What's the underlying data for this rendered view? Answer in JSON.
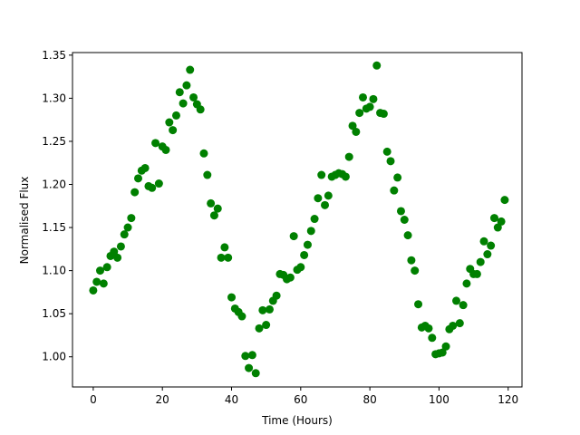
{
  "chart_data": {
    "type": "scatter",
    "title": "",
    "xlabel": "Time (Hours)",
    "ylabel": "Normalised Flux",
    "xlim": [
      -6,
      124
    ],
    "ylim": [
      0.965,
      1.353
    ],
    "xticks": [
      0,
      20,
      40,
      60,
      80,
      100,
      120
    ],
    "yticks": [
      1.0,
      1.05,
      1.1,
      1.15,
      1.2,
      1.25,
      1.3,
      1.35
    ],
    "xtick_labels": [
      "0",
      "20",
      "40",
      "60",
      "80",
      "100",
      "120"
    ],
    "ytick_labels": [
      "1.00",
      "1.05",
      "1.10",
      "1.15",
      "1.20",
      "1.25",
      "1.30",
      "1.35"
    ],
    "grid": false,
    "marker_color": "#008000",
    "series": [
      {
        "x": [
          0,
          1,
          2,
          3,
          4,
          5,
          6,
          7,
          8,
          9,
          10,
          11,
          12,
          13,
          14,
          15,
          16,
          17,
          18,
          19,
          20,
          21,
          22,
          23,
          24,
          25,
          26,
          27,
          28,
          29,
          30,
          31,
          32,
          33,
          34,
          35,
          36,
          37,
          38,
          39,
          40,
          41,
          42,
          43,
          44,
          45,
          46,
          47,
          48,
          49,
          50,
          51,
          52,
          53,
          54,
          55,
          56,
          57,
          58,
          59,
          60,
          61,
          62,
          63,
          64,
          65,
          66,
          67,
          68,
          69,
          70,
          71,
          72,
          73,
          74,
          75,
          76,
          77,
          78,
          79,
          80,
          81,
          82,
          83,
          84,
          85,
          86,
          87,
          88,
          89,
          90,
          91,
          92,
          93,
          94,
          95,
          96,
          97,
          98,
          99,
          100,
          101,
          102,
          103,
          104,
          105,
          106,
          107,
          108,
          109,
          110,
          111,
          112,
          113,
          114,
          115,
          116,
          117,
          118,
          119
        ],
        "y": [
          1.077,
          1.087,
          1.1,
          1.085,
          1.104,
          1.117,
          1.122,
          1.115,
          1.128,
          1.142,
          1.15,
          1.161,
          1.191,
          1.207,
          1.216,
          1.219,
          1.198,
          1.196,
          1.248,
          1.201,
          1.244,
          1.24,
          1.272,
          1.263,
          1.28,
          1.307,
          1.294,
          1.315,
          1.333,
          1.301,
          1.293,
          1.287,
          1.236,
          1.211,
          1.178,
          1.164,
          1.172,
          1.115,
          1.127,
          1.115,
          1.069,
          1.056,
          1.052,
          1.047,
          1.001,
          0.987,
          1.002,
          0.981,
          1.033,
          1.054,
          1.037,
          1.055,
          1.065,
          1.071,
          1.096,
          1.095,
          1.09,
          1.092,
          1.14,
          1.101,
          1.104,
          1.118,
          1.13,
          1.146,
          1.16,
          1.184,
          1.211,
          1.176,
          1.187,
          1.209,
          1.211,
          1.213,
          1.212,
          1.209,
          1.232,
          1.268,
          1.261,
          1.283,
          1.301,
          1.288,
          1.29,
          1.299,
          1.338,
          1.283,
          1.282,
          1.238,
          1.227,
          1.193,
          1.208,
          1.169,
          1.159,
          1.141,
          1.112,
          1.1,
          1.061,
          1.034,
          1.036,
          1.033,
          1.022,
          1.003,
          1.004,
          1.005,
          1.012,
          1.032,
          1.036,
          1.065,
          1.039,
          1.06,
          1.085,
          1.102,
          1.096,
          1.096,
          1.11,
          1.134,
          1.119,
          1.129,
          1.161,
          1.15,
          1.157,
          1.182
        ]
      }
    ]
  }
}
